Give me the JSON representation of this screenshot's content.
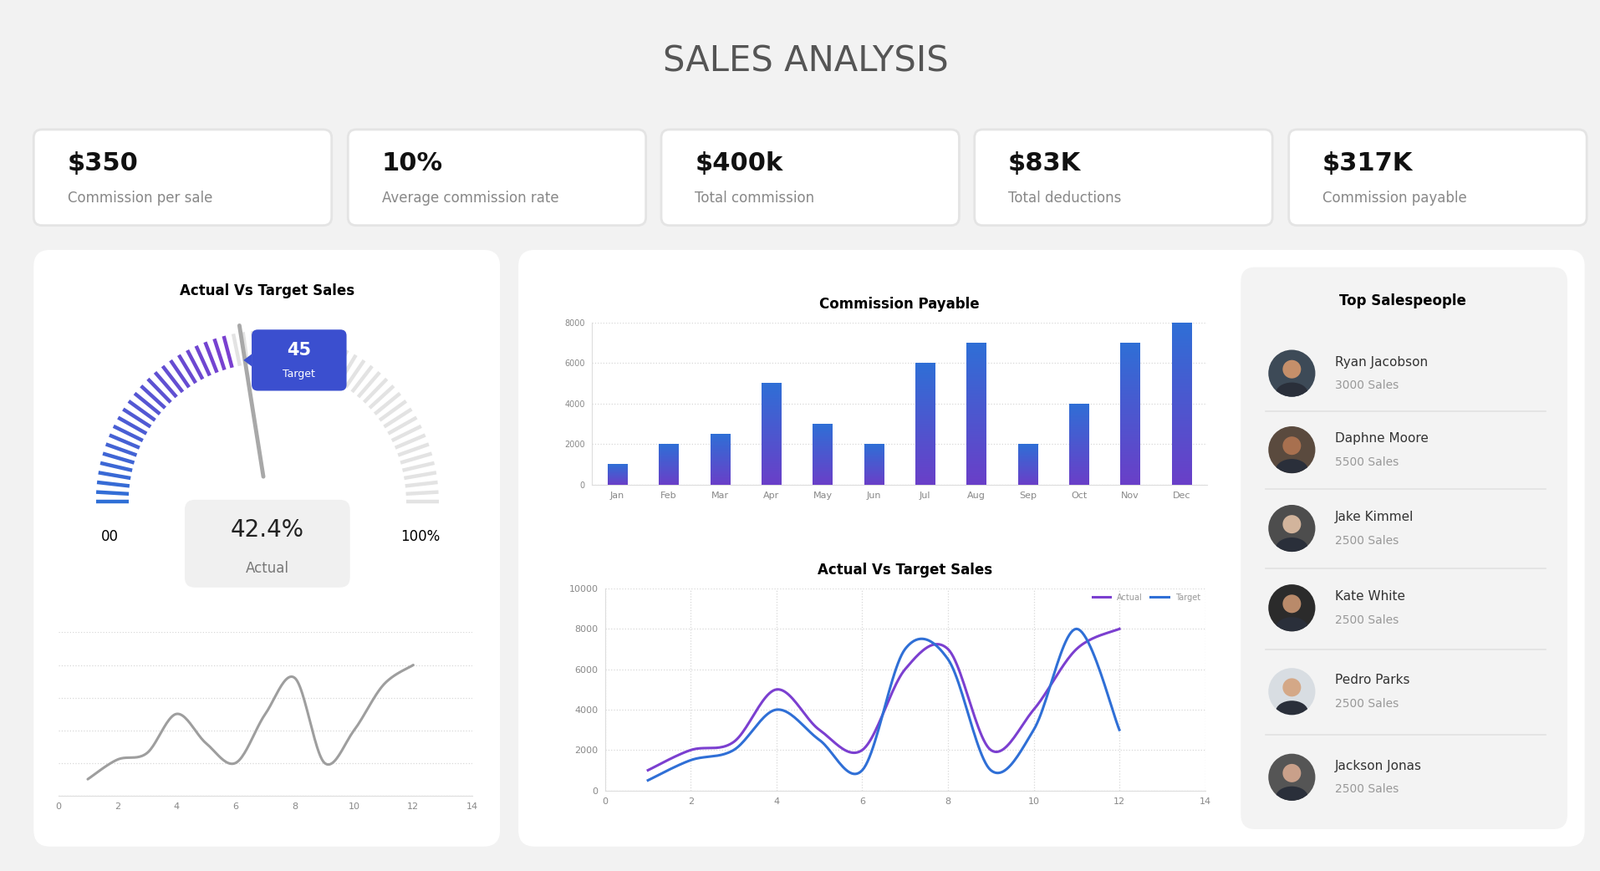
{
  "title": "SALES ANALYSIS",
  "kpis": [
    {
      "value": "$350",
      "label": "Commission per sale"
    },
    {
      "value": "10%",
      "label": "Average commission rate"
    },
    {
      "value": "$400k",
      "label": "Total commission"
    },
    {
      "value": "$83K",
      "label": "Total deductions"
    },
    {
      "value": "$317K",
      "label": "Commission payable"
    }
  ],
  "chart_data": [
    {
      "type": "gauge",
      "title": "Actual Vs Target Sales",
      "min": {
        "value": 0,
        "label": "00"
      },
      "max": {
        "value": 100,
        "label": "100%"
      },
      "target": 45,
      "target_label": "Target",
      "actual": 42.4,
      "actual_value_label": "42.4%",
      "actual_label": "Actual"
    },
    {
      "type": "line",
      "x": [
        1,
        2,
        3,
        4,
        5,
        6,
        7,
        8,
        9,
        10,
        11,
        12
      ],
      "values": [
        0.5,
        1.1,
        1.3,
        2.5,
        1.6,
        1.0,
        2.5,
        3.6,
        1.0,
        2.0,
        3.4,
        4.0
      ],
      "color": "#9e9e9e",
      "xlim": [
        0,
        14
      ],
      "xticks": [
        0,
        2,
        4,
        6,
        8,
        10,
        12,
        14
      ],
      "ylim": [
        0,
        5
      ],
      "yticks": [
        0,
        1,
        2,
        3,
        4,
        5
      ],
      "grid": true,
      "tick_labels": "x"
    },
    {
      "type": "bar",
      "title": "Commission Payable",
      "categories": [
        "Jan",
        "Feb",
        "Mar",
        "Apr",
        "May",
        "Jun",
        "Jul",
        "Aug",
        "Sep",
        "Oct",
        "Nov",
        "Dec"
      ],
      "values": [
        1000,
        2000,
        2500,
        5000,
        3000,
        2000,
        6000,
        7000,
        2000,
        4000,
        7000,
        8000
      ],
      "color": "#2f6fd6",
      "ylim": [
        0,
        8000
      ],
      "yticks": [
        0,
        2000,
        4000,
        6000,
        8000
      ],
      "grid": true
    },
    {
      "type": "line",
      "title": "Actual Vs Target Sales",
      "x": [
        1,
        2,
        3,
        4,
        5,
        6,
        7,
        8,
        9,
        10,
        11,
        12
      ],
      "series": [
        {
          "name": "Actual",
          "color": "#7b3fd0",
          "values": [
            1000,
            2000,
            2400,
            5000,
            3000,
            2000,
            6000,
            7000,
            2000,
            4000,
            7000,
            8000
          ]
        },
        {
          "name": "Target",
          "color": "#2f6fd6",
          "values": [
            500,
            1500,
            2000,
            4000,
            2500,
            1000,
            7000,
            6500,
            1000,
            3000,
            8000,
            3000
          ]
        }
      ],
      "xlim": [
        0,
        14
      ],
      "xticks": [
        0,
        2,
        4,
        6,
        8,
        10,
        12,
        14
      ],
      "ylim": [
        0,
        10000
      ],
      "yticks": [
        0,
        2000,
        4000,
        6000,
        8000,
        10000
      ],
      "grid": true,
      "legend": "upper right"
    }
  ],
  "top_salespeople": {
    "title": "Top Salespeople",
    "people": [
      {
        "name": "Ryan Jacobson",
        "sales": "3000 Sales"
      },
      {
        "name": "Daphne Moore",
        "sales": "5500 Sales"
      },
      {
        "name": "Jake Kimmel",
        "sales": "2500 Sales"
      },
      {
        "name": "Kate White",
        "sales": "2500 Sales"
      },
      {
        "name": "Pedro Parks",
        "sales": "2500 Sales"
      },
      {
        "name": "Jackson Jonas",
        "sales": "2500 Sales"
      }
    ]
  }
}
